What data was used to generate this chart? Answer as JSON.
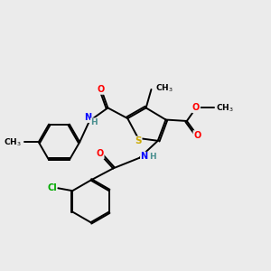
{
  "background_color": "#ebebeb",
  "bond_color": "#000000",
  "atom_colors": {
    "S": "#ccaa00",
    "N": "#0000ff",
    "O": "#ff0000",
    "Cl": "#00aa00",
    "C": "#000000",
    "H": "#4a9090"
  },
  "figsize": [
    3.0,
    3.0
  ],
  "dpi": 100
}
